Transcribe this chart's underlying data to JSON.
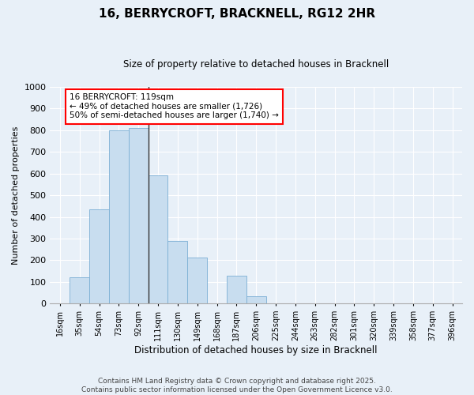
{
  "title": "16, BERRYCROFT, BRACKNELL, RG12 2HR",
  "subtitle": "Size of property relative to detached houses in Bracknell",
  "xlabel": "Distribution of detached houses by size in Bracknell",
  "ylabel": "Number of detached properties",
  "bar_color": "#c8ddef",
  "bar_edge_color": "#7bafd4",
  "background_color": "#e8f0f8",
  "grid_color": "#ffffff",
  "categories": [
    "16sqm",
    "35sqm",
    "54sqm",
    "73sqm",
    "92sqm",
    "111sqm",
    "130sqm",
    "149sqm",
    "168sqm",
    "187sqm",
    "206sqm",
    "225sqm",
    "244sqm",
    "263sqm",
    "282sqm",
    "301sqm",
    "320sqm",
    "339sqm",
    "358sqm",
    "377sqm",
    "396sqm"
  ],
  "values": [
    0,
    120,
    435,
    800,
    810,
    590,
    290,
    213,
    0,
    130,
    35,
    0,
    0,
    0,
    0,
    0,
    0,
    0,
    0,
    0,
    0
  ],
  "ylim": [
    0,
    1000
  ],
  "yticks": [
    0,
    100,
    200,
    300,
    400,
    500,
    600,
    700,
    800,
    900,
    1000
  ],
  "annotation_text": "16 BERRYCROFT: 119sqm\n← 49% of detached houses are smaller (1,726)\n50% of semi-detached houses are larger (1,740) →",
  "vline_x": 4.5,
  "footer": "Contains HM Land Registry data © Crown copyright and database right 2025.\nContains public sector information licensed under the Open Government Licence v3.0."
}
